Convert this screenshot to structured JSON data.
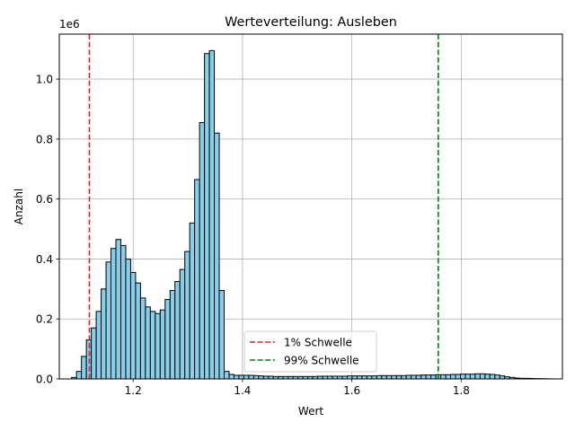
{
  "chart_data": {
    "type": "bar",
    "title": "Werteverteilung: Ausleben",
    "xlabel": "Wert",
    "ylabel": "Anzahl",
    "y_offset_text": "1e6",
    "xlim": [
      1.065,
      1.985
    ],
    "ylim": [
      0,
      1150000
    ],
    "x_ticks": [
      1.2,
      1.4,
      1.6,
      1.8
    ],
    "x_tick_labels": [
      "1.2",
      "1.4",
      "1.6",
      "1.8"
    ],
    "y_ticks": [
      0,
      200000,
      400000,
      600000,
      800000,
      1000000
    ],
    "y_tick_labels": [
      "0.0",
      "0.2",
      "0.4",
      "0.6",
      "0.8",
      "1.0"
    ],
    "grid": true,
    "bar_color": "#87ceeb",
    "bar_edge_color": "#000000",
    "bin_start": 1.0875,
    "bin_width": 0.009,
    "bin_counts": [
      5000,
      25000,
      75000,
      130000,
      170000,
      225000,
      300000,
      390000,
      435000,
      465000,
      445000,
      400000,
      355000,
      320000,
      270000,
      240000,
      225000,
      218000,
      230000,
      265000,
      295000,
      325000,
      365000,
      425000,
      520000,
      665000,
      855000,
      1085000,
      1095000,
      820000,
      295000,
      25000,
      15000,
      12000,
      12000,
      12000,
      12000,
      11000,
      10000,
      9000,
      9000,
      8000,
      8000,
      8000,
      8000,
      8000,
      8000,
      8000,
      8000,
      8000,
      9000,
      9000,
      9000,
      9000,
      9000,
      9000,
      10000,
      10000,
      10000,
      10000,
      10000,
      10000,
      11000,
      11000,
      11000,
      11000,
      11000,
      11000,
      12000,
      12000,
      12000,
      13000,
      13000,
      13000,
      14000,
      14000,
      14000,
      15000,
      15000,
      16000,
      16000,
      16000,
      17000,
      17000,
      16000,
      15000,
      13000,
      10000,
      7000,
      5000,
      3000,
      2000,
      2000,
      1500,
      1000,
      800,
      500,
      300
    ],
    "thresholds": [
      {
        "label": "1% Schwelle",
        "value": 1.12,
        "color": "#d62728"
      },
      {
        "label": "99% Schwelle",
        "value": 1.758,
        "color": "#008000"
      }
    ],
    "legend_position": "lower center"
  }
}
